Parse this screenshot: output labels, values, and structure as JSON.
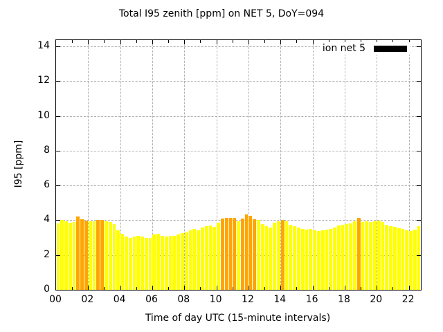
{
  "chart_data": {
    "type": "bar",
    "title": "Total I95 zenith [ppm] on NET 5, DoY=094",
    "xlabel": "Time of day UTC (15-minute intervals)",
    "ylabel": "I95 [ppm]",
    "legend_label": "ion net 5",
    "legend_position": "top-right-inside",
    "grid": true,
    "ylim": [
      0,
      14.36
    ],
    "xlim_hours": [
      0,
      22.75
    ],
    "y_ticks": [
      0,
      2,
      4,
      6,
      8,
      10,
      12,
      14
    ],
    "x_tick_labels": [
      "00",
      "02",
      "04",
      "06",
      "08",
      "10",
      "12",
      "14",
      "16",
      "18",
      "20",
      "22"
    ],
    "x_tick_step_hours": 2,
    "x_minor_tick_step_hours": 1,
    "interval_minutes": 15,
    "times": [
      "00:00",
      "00:15",
      "00:30",
      "00:45",
      "01:00",
      "01:15",
      "01:30",
      "01:45",
      "02:00",
      "02:15",
      "02:30",
      "02:45",
      "03:00",
      "03:15",
      "03:30",
      "03:45",
      "04:00",
      "04:15",
      "04:30",
      "04:45",
      "05:00",
      "05:15",
      "05:30",
      "05:45",
      "06:00",
      "06:15",
      "06:30",
      "06:45",
      "07:00",
      "07:15",
      "07:30",
      "07:45",
      "08:00",
      "08:15",
      "08:30",
      "08:45",
      "09:00",
      "09:15",
      "09:30",
      "09:45",
      "10:00",
      "10:15",
      "10:30",
      "10:45",
      "11:00",
      "11:15",
      "11:30",
      "11:45",
      "12:00",
      "12:15",
      "12:30",
      "12:45",
      "13:00",
      "13:15",
      "13:30",
      "13:45",
      "14:00",
      "14:15",
      "14:30",
      "14:45",
      "15:00",
      "15:15",
      "15:30",
      "15:45",
      "16:00",
      "16:15",
      "16:30",
      "16:45",
      "17:00",
      "17:15",
      "17:30",
      "17:45",
      "18:00",
      "18:15",
      "18:30",
      "18:45",
      "19:00",
      "19:15",
      "19:30",
      "19:45",
      "20:00",
      "20:15",
      "20:30",
      "20:45",
      "21:00",
      "21:15",
      "21:30",
      "21:45",
      "22:00",
      "22:15",
      "22:30"
    ],
    "values": [
      3.82,
      4.0,
      3.93,
      3.86,
      3.9,
      4.22,
      4.06,
      3.98,
      3.93,
      3.93,
      4.02,
      4.02,
      3.93,
      3.88,
      3.78,
      3.42,
      3.22,
      3.05,
      3.0,
      3.08,
      3.12,
      3.05,
      3.0,
      2.97,
      3.18,
      3.22,
      3.1,
      3.05,
      3.12,
      3.12,
      3.18,
      3.28,
      3.3,
      3.42,
      3.5,
      3.42,
      3.6,
      3.67,
      3.7,
      3.63,
      3.85,
      4.08,
      4.12,
      4.12,
      4.12,
      3.93,
      4.08,
      4.35,
      4.25,
      4.05,
      4.0,
      3.78,
      3.68,
      3.58,
      3.85,
      3.92,
      4.02,
      3.93,
      3.73,
      3.68,
      3.6,
      3.52,
      3.48,
      3.52,
      3.42,
      3.37,
      3.43,
      3.46,
      3.5,
      3.6,
      3.7,
      3.72,
      3.76,
      3.81,
      3.93,
      4.15,
      3.91,
      3.93,
      3.9,
      3.93,
      3.96,
      3.9,
      3.72,
      3.66,
      3.62,
      3.56,
      3.52,
      3.42,
      3.38,
      3.48,
      3.65
    ],
    "highlight_indices": [
      5,
      6,
      7,
      10,
      11,
      41,
      42,
      43,
      44,
      46,
      47,
      48,
      49,
      56,
      75
    ]
  },
  "colors": {
    "bar": "#FFFF00",
    "bar_highlight": "#FFA500",
    "grid": "#B0B0B0",
    "legend_swatch": "#000000",
    "border": "#000000"
  }
}
